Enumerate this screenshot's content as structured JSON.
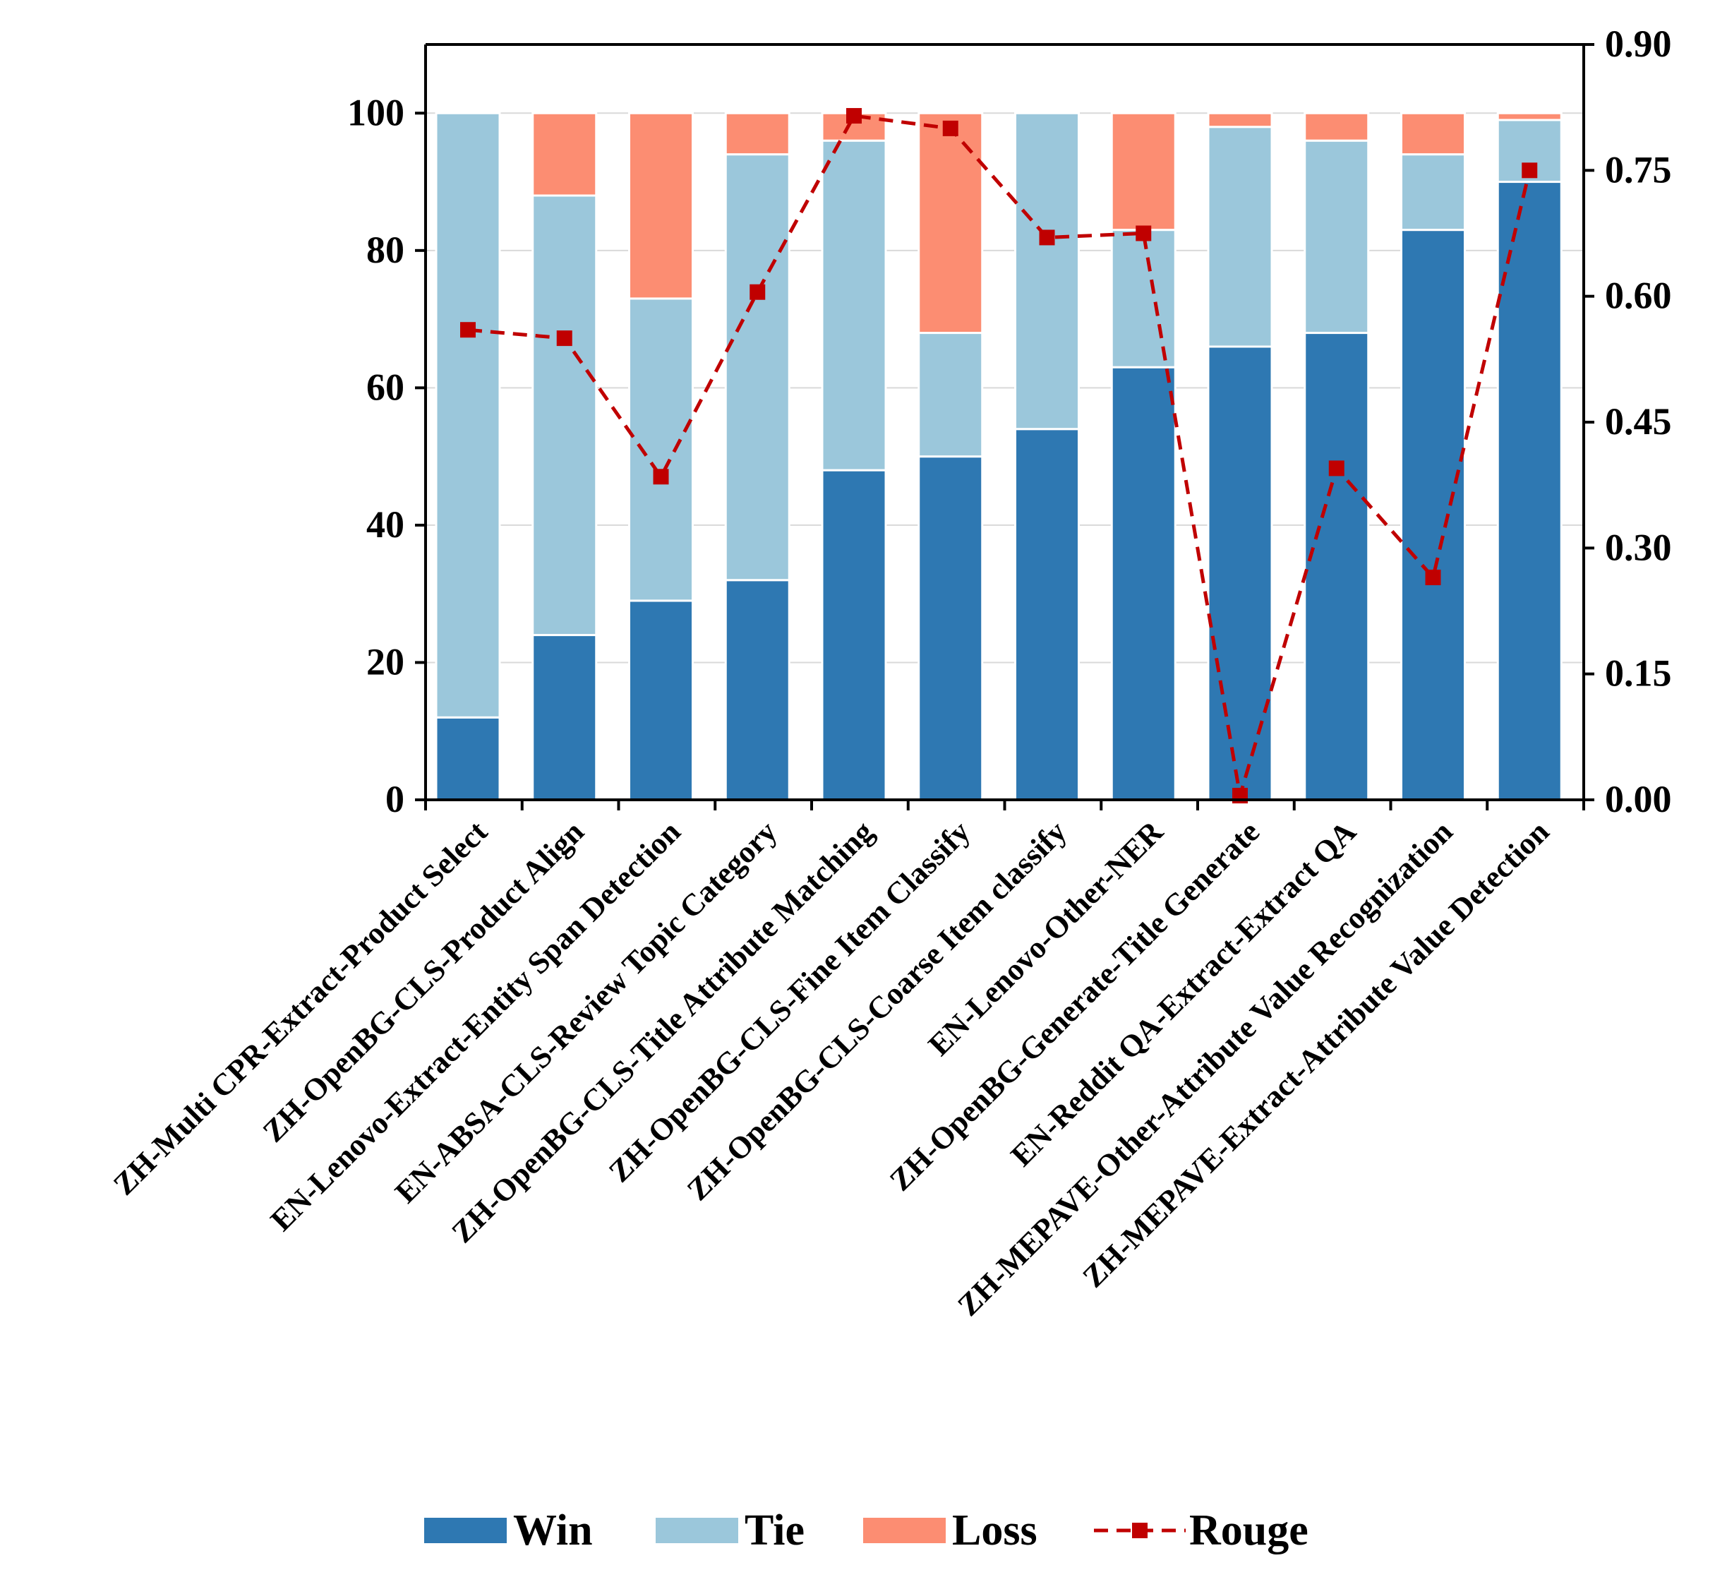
{
  "colors": {
    "win": "#2e78b2",
    "tie": "#9bc7db",
    "loss": "#fc8d72",
    "rouge": "#c00000",
    "axis": "#000000",
    "grid": "#d9d9d9"
  },
  "chart_data": {
    "type": "bar",
    "subtype": "stacked-bar-with-line-secondary-axis",
    "title": "",
    "xlabel": "",
    "ylabel": "",
    "ylim": [
      0,
      110
    ],
    "y_ticks": [
      "0",
      "20",
      "40",
      "60",
      "80",
      "100"
    ],
    "y2lim": [
      0,
      0.9
    ],
    "y2_ticks": [
      "0.00",
      "0.15",
      "0.30",
      "0.45",
      "0.60",
      "0.75",
      "0.90"
    ],
    "grid": "horizontal",
    "legend_position": "bottom",
    "categories": [
      "ZH-Multi CPR-Extract-Product Select",
      "ZH-OpenBG-CLS-Product Align",
      "EN-Lenovo-Extract-Entity Span Detection",
      "EN-ABSA-CLS-Review Topic Category",
      "ZH-OpenBG-CLS-Title Attribute Matching",
      "ZH-OpenBG-CLS-Fine Item Classify",
      "ZH-OpenBG-CLS-Coarse Item classify",
      "EN-Lenovo-Other-NER",
      "ZH-OpenBG-Generate-Title Generate",
      "EN-Reddit QA-Extract-Extract QA",
      "ZH-MEPAVE-Other-Attribute Value Recognization",
      "ZH-MEPAVE-Extract-Attribute Value Detection"
    ],
    "series": [
      {
        "name": "Win",
        "kind": "bar",
        "axis": "left",
        "values": [
          12,
          24,
          29,
          32,
          48,
          50,
          54,
          63,
          66,
          68,
          83,
          90
        ]
      },
      {
        "name": "Tie",
        "kind": "bar",
        "axis": "left",
        "values": [
          88,
          64,
          44,
          62,
          48,
          18,
          46,
          20,
          32,
          28,
          11,
          9
        ]
      },
      {
        "name": "Loss",
        "kind": "bar",
        "axis": "left",
        "values": [
          0,
          12,
          27,
          6,
          4,
          32,
          0,
          17,
          2,
          4,
          6,
          1
        ]
      },
      {
        "name": "Rouge",
        "kind": "line",
        "axis": "right",
        "values": [
          0.56,
          0.55,
          0.385,
          0.605,
          0.815,
          0.8,
          0.67,
          0.675,
          0.005,
          0.395,
          0.265,
          0.75
        ]
      }
    ]
  }
}
